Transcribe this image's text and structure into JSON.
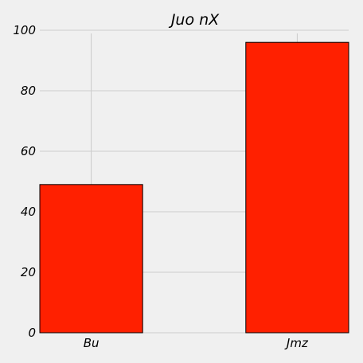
{
  "chart_data": {
    "type": "bar",
    "title": "Juo  nX",
    "xlabel": "",
    "ylabel": "",
    "categories": [
      "Bu",
      "Jmz"
    ],
    "series": [
      {
        "values": [
          49,
          96
        ]
      }
    ],
    "ylim": [
      0,
      100
    ],
    "yticks": [
      0,
      20,
      40,
      60,
      80,
      100
    ],
    "grid": true,
    "bar_color": "#ff2000",
    "bar_edge_color": "#000000",
    "background_color": "#f0f0f0",
    "grid_color": "#cbcbcb"
  }
}
